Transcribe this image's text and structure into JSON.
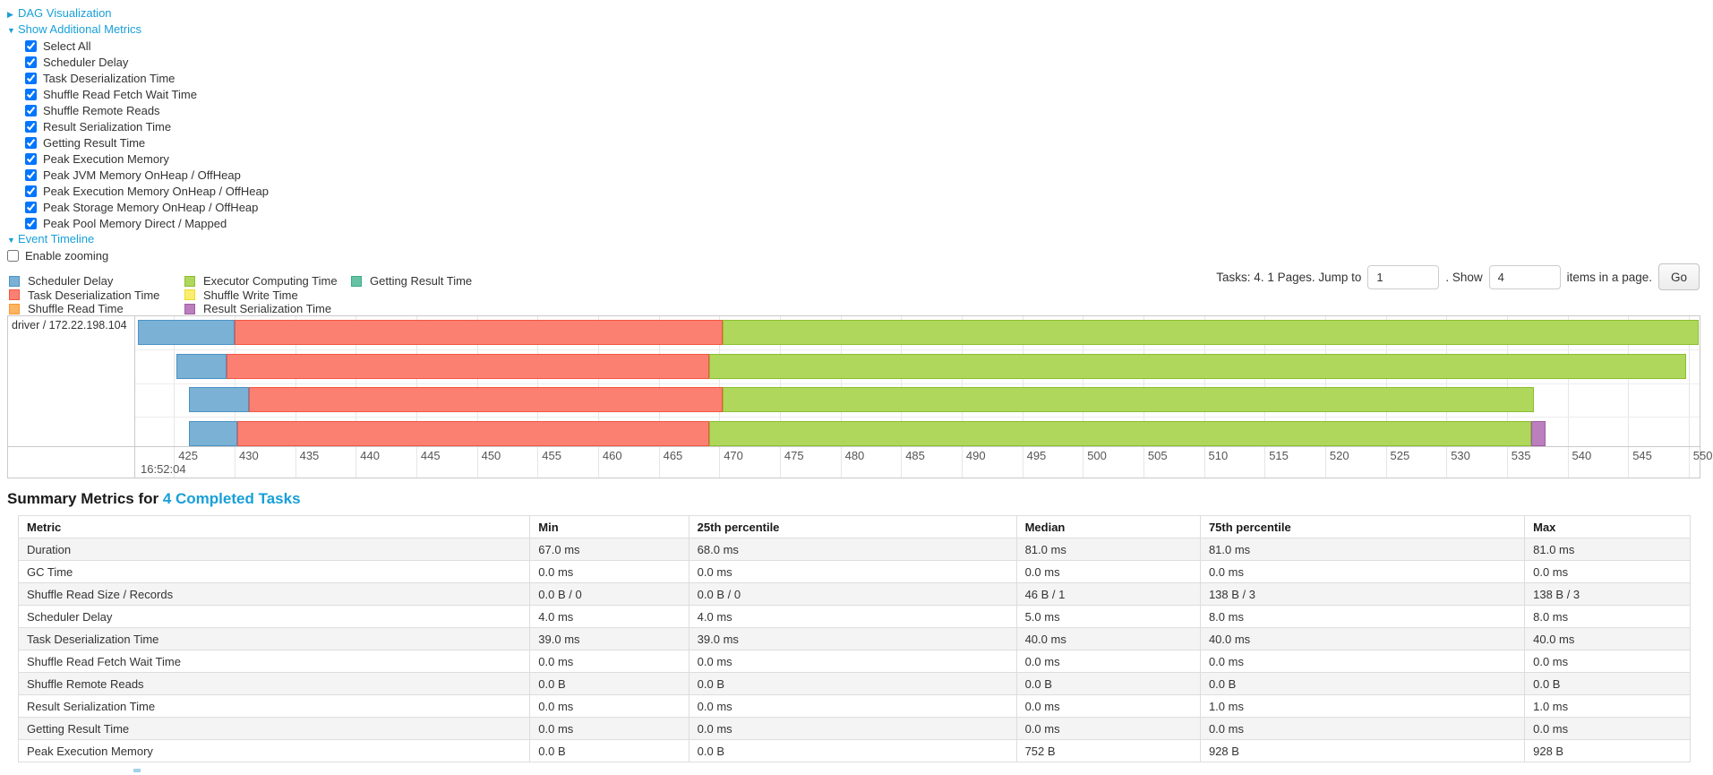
{
  "toggles": {
    "dag": "DAG Visualization",
    "metrics": "Show Additional Metrics",
    "timeline": "Event Timeline"
  },
  "metric_checkboxes": [
    {
      "label": "Select All",
      "checked": true
    },
    {
      "label": "Scheduler Delay",
      "checked": true
    },
    {
      "label": "Task Deserialization Time",
      "checked": true
    },
    {
      "label": "Shuffle Read Fetch Wait Time",
      "checked": true
    },
    {
      "label": "Shuffle Remote Reads",
      "checked": true
    },
    {
      "label": "Result Serialization Time",
      "checked": true
    },
    {
      "label": "Getting Result Time",
      "checked": true
    },
    {
      "label": "Peak Execution Memory",
      "checked": true
    },
    {
      "label": "Peak JVM Memory OnHeap / OffHeap",
      "checked": true
    },
    {
      "label": "Peak Execution Memory OnHeap / OffHeap",
      "checked": true
    },
    {
      "label": "Peak Storage Memory OnHeap / OffHeap",
      "checked": true
    },
    {
      "label": "Peak Pool Memory Direct / Mapped",
      "checked": true
    }
  ],
  "enable_zooming": {
    "label": "Enable zooming",
    "checked": false
  },
  "pagination": {
    "tasks_text": "Tasks: 4. 1 Pages. Jump to",
    "jump_value": "1",
    "mid_text": ". Show",
    "show_value": "4",
    "suffix_text": "items in a page.",
    "go_label": "Go"
  },
  "chart_data": {
    "type": "timeline",
    "group_label": "driver / 172.22.198.104",
    "axis": {
      "min": 421.8,
      "max": 550.9,
      "tick_step": 5,
      "ticks": [
        425,
        430,
        435,
        440,
        445,
        450,
        455,
        460,
        465,
        470,
        475,
        480,
        485,
        490,
        495,
        500,
        505,
        510,
        515,
        520,
        525,
        530,
        535,
        540,
        545,
        550
      ],
      "major_label": "16:52:04",
      "unit": "ms"
    },
    "legend": [
      {
        "metric": "scheduler-delay",
        "label": "Scheduler Delay"
      },
      {
        "metric": "task-deserialization",
        "label": "Task Deserialization Time"
      },
      {
        "metric": "shuffle-read",
        "label": "Shuffle Read Time"
      },
      {
        "metric": "executor-computing",
        "label": "Executor Computing Time"
      },
      {
        "metric": "shuffle-write",
        "label": "Shuffle Write Time"
      },
      {
        "metric": "result-serialization",
        "label": "Result Serialization Time"
      },
      {
        "metric": "getting-result",
        "label": "Getting Result Time"
      }
    ],
    "colors": {
      "scheduler-delay": {
        "fill": "#7AB1D5",
        "border": "#4B92C5"
      },
      "task-deserialization": {
        "fill": "#FB8072",
        "border": "#F25540"
      },
      "shuffle-read": {
        "fill": "#FDB462",
        "border": "#FB9A2C"
      },
      "executor-computing": {
        "fill": "#AFD75C",
        "border": "#8CBE2F"
      },
      "shuffle-write": {
        "fill": "#FBEE6E",
        "border": "#EFD92C"
      },
      "result-serialization": {
        "fill": "#BA7FBC",
        "border": "#A35BA6"
      },
      "getting-result": {
        "fill": "#65C2A5",
        "border": "#3FAA87"
      }
    },
    "tasks": [
      {
        "segments": [
          {
            "metric": "scheduler-delay",
            "start": 422.0,
            "end": 430.0
          },
          {
            "metric": "task-deserialization",
            "start": 430.0,
            "end": 470.3
          },
          {
            "metric": "executor-computing",
            "start": 470.3,
            "end": 550.8
          }
        ]
      },
      {
        "segments": [
          {
            "metric": "scheduler-delay",
            "start": 425.2,
            "end": 429.3
          },
          {
            "metric": "task-deserialization",
            "start": 429.3,
            "end": 469.2
          },
          {
            "metric": "executor-computing",
            "start": 469.2,
            "end": 549.8
          }
        ]
      },
      {
        "segments": [
          {
            "metric": "scheduler-delay",
            "start": 426.2,
            "end": 431.2
          },
          {
            "metric": "task-deserialization",
            "start": 431.2,
            "end": 470.3
          },
          {
            "metric": "executor-computing",
            "start": 470.3,
            "end": 537.2
          }
        ]
      },
      {
        "segments": [
          {
            "metric": "scheduler-delay",
            "start": 426.2,
            "end": 430.2
          },
          {
            "metric": "task-deserialization",
            "start": 430.2,
            "end": 469.2
          },
          {
            "metric": "executor-computing",
            "start": 469.2,
            "end": 537.0
          },
          {
            "metric": "result-serialization",
            "start": 537.0,
            "end": 538.2
          }
        ]
      }
    ]
  },
  "summary": {
    "heading_prefix": "Summary Metrics for ",
    "heading_link": "4 Completed Tasks",
    "columns": [
      "Metric",
      "Min",
      "25th percentile",
      "Median",
      "75th percentile",
      "Max"
    ],
    "col_widths": [
      "30.6%",
      "9.5%",
      "19.6%",
      "11.0%",
      "19.4%",
      "9.9%"
    ],
    "rows": [
      [
        "Duration",
        "67.0 ms",
        "68.0 ms",
        "81.0 ms",
        "81.0 ms",
        "81.0 ms"
      ],
      [
        "GC Time",
        "0.0 ms",
        "0.0 ms",
        "0.0 ms",
        "0.0 ms",
        "0.0 ms"
      ],
      [
        "Shuffle Read Size / Records",
        "0.0 B / 0",
        "0.0 B / 0",
        "46 B / 1",
        "138 B / 3",
        "138 B / 3"
      ],
      [
        "Scheduler Delay",
        "4.0 ms",
        "4.0 ms",
        "5.0 ms",
        "8.0 ms",
        "8.0 ms"
      ],
      [
        "Task Deserialization Time",
        "39.0 ms",
        "39.0 ms",
        "40.0 ms",
        "40.0 ms",
        "40.0 ms"
      ],
      [
        "Shuffle Read Fetch Wait Time",
        "0.0 ms",
        "0.0 ms",
        "0.0 ms",
        "0.0 ms",
        "0.0 ms"
      ],
      [
        "Shuffle Remote Reads",
        "0.0 B",
        "0.0 B",
        "0.0 B",
        "0.0 B",
        "0.0 B"
      ],
      [
        "Result Serialization Time",
        "0.0 ms",
        "0.0 ms",
        "0.0 ms",
        "1.0 ms",
        "1.0 ms"
      ],
      [
        "Getting Result Time",
        "0.0 ms",
        "0.0 ms",
        "0.0 ms",
        "0.0 ms",
        "0.0 ms"
      ],
      [
        "Peak Execution Memory",
        "0.0 B",
        "0.0 B",
        "752 B",
        "928 B",
        "928 B"
      ]
    ]
  }
}
